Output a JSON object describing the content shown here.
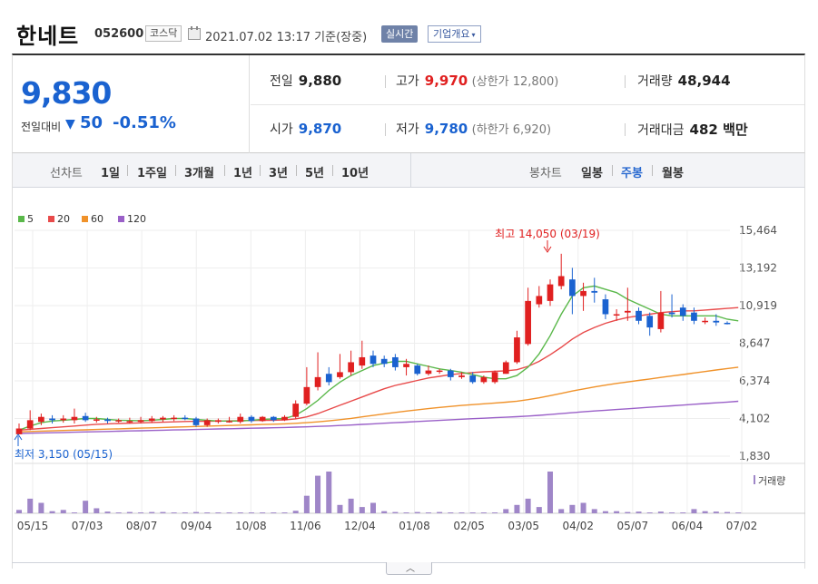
{
  "header": {
    "name": "한네트",
    "code": "052600",
    "market": "코스닥",
    "datetime": "2021.07.02 13:17  기준(장중)",
    "realtime_label": "실시간",
    "overview_label": "기업개요",
    "overview_caret": "▾"
  },
  "quote": {
    "price": "9,830",
    "diff_label": "전일대비",
    "diff_arrow": "▼",
    "diff_value": "50",
    "diff_pct": "-0.51%",
    "prev_close_label": "전일",
    "prev_close": "9,880",
    "high_label": "고가",
    "high": "9,970",
    "upper_limit": "(상한가 12,800)",
    "volume_label": "거래량",
    "volume": "48,944",
    "open_label": "시가",
    "open": "9,870",
    "low_label": "저가",
    "low": "9,780",
    "lower_limit": "(하한가 6,920)",
    "amount_label": "거래대금",
    "amount": "482 백만"
  },
  "period_bar": {
    "line_label": "선차트",
    "line_items": [
      "1일",
      "1주일",
      "3개월",
      "1년",
      "3년",
      "5년",
      "10년"
    ],
    "candle_label": "봉차트",
    "candle_items": [
      "일봉",
      "주봉",
      "월봉"
    ],
    "active": "주봉"
  },
  "colors": {
    "up": "#e02020",
    "down": "#1a62d0",
    "ma5": "#5ab84a",
    "ma20": "#e84a4a",
    "ma60": "#f0922a",
    "ma120": "#9a60c8",
    "volume": "#9f86c8"
  },
  "chart_data": {
    "type": "candlestick",
    "legend": [
      "5",
      "20",
      "60",
      "120"
    ],
    "y_ticks": [
      "15,464",
      "13,192",
      "10,919",
      "8,647",
      "6,374",
      "4,102",
      "1,830"
    ],
    "ylim": [
      1830,
      15464
    ],
    "x_ticks": [
      "05/15",
      "07/03",
      "08/07",
      "09/04",
      "10/08",
      "11/06",
      "12/04",
      "01/08",
      "02/05",
      "03/05",
      "04/02",
      "05/07",
      "06/04",
      "07/02"
    ],
    "high_annotation": "최고 14,050 (03/19)",
    "low_annotation": "최저 3,150 (05/15)",
    "volume_label": "거래량",
    "candles": [
      {
        "o": 3150,
        "c": 3500,
        "h": 3800,
        "l": 3150
      },
      {
        "o": 3500,
        "c": 4000,
        "h": 4600,
        "l": 3400
      },
      {
        "o": 3900,
        "c": 4200,
        "h": 4400,
        "l": 3700
      },
      {
        "o": 4100,
        "c": 4000,
        "h": 4300,
        "l": 3800
      },
      {
        "o": 4000,
        "c": 4100,
        "h": 4300,
        "l": 3850
      },
      {
        "o": 4000,
        "c": 4200,
        "h": 4700,
        "l": 3800
      },
      {
        "o": 4250,
        "c": 4000,
        "h": 4450,
        "l": 3900
      },
      {
        "o": 4000,
        "c": 4050,
        "h": 4200,
        "l": 3850
      },
      {
        "o": 4050,
        "c": 3950,
        "h": 4150,
        "l": 3800
      },
      {
        "o": 3950,
        "c": 4000,
        "h": 4100,
        "l": 3850
      },
      {
        "o": 3900,
        "c": 3950,
        "h": 4150,
        "l": 3800
      },
      {
        "o": 3900,
        "c": 4000,
        "h": 4200,
        "l": 3800
      },
      {
        "o": 3950,
        "c": 4100,
        "h": 4250,
        "l": 3850
      },
      {
        "o": 4050,
        "c": 4150,
        "h": 4250,
        "l": 3900
      },
      {
        "o": 4100,
        "c": 4150,
        "h": 4300,
        "l": 3950
      },
      {
        "o": 4150,
        "c": 4100,
        "h": 4300,
        "l": 4000
      },
      {
        "o": 4100,
        "c": 3700,
        "h": 4200,
        "l": 3600
      },
      {
        "o": 3700,
        "c": 4000,
        "h": 4100,
        "l": 3600
      },
      {
        "o": 3900,
        "c": 4000,
        "h": 4100,
        "l": 3800
      },
      {
        "o": 3900,
        "c": 3950,
        "h": 4200,
        "l": 3850
      },
      {
        "o": 3900,
        "c": 4200,
        "h": 4400,
        "l": 3800
      },
      {
        "o": 4200,
        "c": 3950,
        "h": 4300,
        "l": 3850
      },
      {
        "o": 3950,
        "c": 4200,
        "h": 4250,
        "l": 3900
      },
      {
        "o": 4200,
        "c": 4000,
        "h": 4250,
        "l": 3900
      },
      {
        "o": 4000,
        "c": 4200,
        "h": 4300,
        "l": 3950
      },
      {
        "o": 4200,
        "c": 5000,
        "h": 5200,
        "l": 4100
      },
      {
        "o": 5000,
        "c": 6000,
        "h": 7200,
        "l": 4900
      },
      {
        "o": 6000,
        "c": 6600,
        "h": 8100,
        "l": 5800
      },
      {
        "o": 6800,
        "c": 6300,
        "h": 7200,
        "l": 6100
      },
      {
        "o": 6600,
        "c": 6900,
        "h": 8000,
        "l": 6500
      },
      {
        "o": 6900,
        "c": 7500,
        "h": 8200,
        "l": 6700
      },
      {
        "o": 7300,
        "c": 7800,
        "h": 8800,
        "l": 7100
      },
      {
        "o": 7900,
        "c": 7400,
        "h": 8200,
        "l": 7200
      },
      {
        "o": 7700,
        "c": 7400,
        "h": 7900,
        "l": 7200
      },
      {
        "o": 7800,
        "c": 7200,
        "h": 8000,
        "l": 7000
      },
      {
        "o": 7200,
        "c": 7400,
        "h": 7700,
        "l": 6700
      },
      {
        "o": 7300,
        "c": 6800,
        "h": 7400,
        "l": 6700
      },
      {
        "o": 6800,
        "c": 7000,
        "h": 7300,
        "l": 6700
      },
      {
        "o": 7000,
        "c": 7000,
        "h": 7100,
        "l": 6800
      },
      {
        "o": 7000,
        "c": 6600,
        "h": 7100,
        "l": 6400
      },
      {
        "o": 6600,
        "c": 6700,
        "h": 6900,
        "l": 6500
      },
      {
        "o": 6700,
        "c": 6300,
        "h": 6900,
        "l": 6200
      },
      {
        "o": 6300,
        "c": 6600,
        "h": 6700,
        "l": 6200
      },
      {
        "o": 6300,
        "c": 6900,
        "h": 7000,
        "l": 6200
      },
      {
        "o": 6800,
        "c": 7500,
        "h": 7600,
        "l": 6800
      },
      {
        "o": 7500,
        "c": 9000,
        "h": 9400,
        "l": 7400
      },
      {
        "o": 8600,
        "c": 11200,
        "h": 12000,
        "l": 8500
      },
      {
        "o": 11000,
        "c": 11500,
        "h": 12100,
        "l": 10800
      },
      {
        "o": 11200,
        "c": 12200,
        "h": 12500,
        "l": 10900
      },
      {
        "o": 12100,
        "c": 12700,
        "h": 14050,
        "l": 11900
      },
      {
        "o": 12500,
        "c": 11500,
        "h": 13200,
        "l": 10400
      },
      {
        "o": 11500,
        "c": 11800,
        "h": 12300,
        "l": 10600
      },
      {
        "o": 11800,
        "c": 11700,
        "h": 12600,
        "l": 11100
      },
      {
        "o": 11300,
        "c": 10400,
        "h": 11600,
        "l": 10100
      },
      {
        "o": 10400,
        "c": 10400,
        "h": 10700,
        "l": 10000
      },
      {
        "o": 10500,
        "c": 10600,
        "h": 12000,
        "l": 10000
      },
      {
        "o": 10600,
        "c": 10000,
        "h": 10800,
        "l": 9800
      },
      {
        "o": 10300,
        "c": 9600,
        "h": 10500,
        "l": 9100
      },
      {
        "o": 9500,
        "c": 10500,
        "h": 11800,
        "l": 9300
      },
      {
        "o": 10500,
        "c": 10400,
        "h": 11600,
        "l": 10200
      },
      {
        "o": 10800,
        "c": 10300,
        "h": 11000,
        "l": 10000
      },
      {
        "o": 10500,
        "c": 10000,
        "h": 10800,
        "l": 9800
      },
      {
        "o": 10000,
        "c": 10000,
        "h": 10200,
        "l": 9800
      },
      {
        "o": 10000,
        "c": 9900,
        "h": 10400,
        "l": 9700
      },
      {
        "o": 9880,
        "c": 9830,
        "h": 9970,
        "l": 9780
      }
    ],
    "ma": {
      "ma5": [
        3400,
        3650,
        3850,
        3950,
        4000,
        4050,
        4100,
        4100,
        4050,
        4000,
        3980,
        3970,
        4000,
        4050,
        4100,
        4100,
        4050,
        4000,
        3950,
        3950,
        3950,
        4000,
        4050,
        4080,
        4100,
        4300,
        4700,
        5200,
        5800,
        6300,
        6700,
        7000,
        7300,
        7450,
        7550,
        7550,
        7400,
        7250,
        7100,
        7000,
        6900,
        6750,
        6600,
        6500,
        6500,
        6700,
        7200,
        8000,
        9100,
        10400,
        11500,
        12000,
        12100,
        11900,
        11700,
        11300,
        11000,
        10700,
        10400,
        10300,
        10300,
        10300,
        10300,
        10300,
        10100,
        10000
      ],
      "ma20": [
        3400,
        3450,
        3500,
        3550,
        3600,
        3650,
        3700,
        3750,
        3780,
        3800,
        3820,
        3840,
        3860,
        3880,
        3900,
        3920,
        3930,
        3940,
        3950,
        3960,
        3970,
        3980,
        3990,
        4000,
        4020,
        4080,
        4200,
        4400,
        4650,
        4900,
        5150,
        5400,
        5650,
        5900,
        6100,
        6250,
        6400,
        6550,
        6650,
        6750,
        6820,
        6880,
        6920,
        6950,
        6980,
        7050,
        7250,
        7550,
        7950,
        8400,
        8900,
        9300,
        9600,
        9850,
        10050,
        10200,
        10300,
        10400,
        10500,
        10550,
        10600,
        10600,
        10650,
        10700,
        10750,
        10800
      ],
      "ma60": [
        3300,
        3320,
        3340,
        3360,
        3380,
        3400,
        3420,
        3440,
        3460,
        3480,
        3500,
        3520,
        3540,
        3560,
        3580,
        3600,
        3620,
        3640,
        3660,
        3680,
        3700,
        3720,
        3740,
        3760,
        3780,
        3810,
        3850,
        3900,
        3960,
        4030,
        4110,
        4200,
        4290,
        4380,
        4470,
        4550,
        4630,
        4700,
        4770,
        4830,
        4890,
        4940,
        4990,
        5040,
        5090,
        5150,
        5240,
        5350,
        5480,
        5620,
        5760,
        5890,
        6010,
        6120,
        6220,
        6310,
        6400,
        6490,
        6580,
        6670,
        6760,
        6850,
        6940,
        7030,
        7120,
        7200
      ],
      "ma120": [
        3200,
        3215,
        3230,
        3245,
        3260,
        3275,
        3290,
        3305,
        3320,
        3335,
        3350,
        3365,
        3380,
        3395,
        3410,
        3425,
        3440,
        3455,
        3470,
        3485,
        3500,
        3515,
        3530,
        3545,
        3560,
        3580,
        3600,
        3625,
        3650,
        3680,
        3710,
        3745,
        3780,
        3815,
        3850,
        3885,
        3920,
        3955,
        3990,
        4025,
        4060,
        4090,
        4120,
        4150,
        4180,
        4210,
        4250,
        4295,
        4345,
        4400,
        4455,
        4505,
        4555,
        4600,
        4645,
        4690,
        4735,
        4780,
        4825,
        4870,
        4915,
        4960,
        5005,
        5050,
        5095,
        5140
      ]
    },
    "volume": [
      0.08,
      0.35,
      0.25,
      0.05,
      0.08,
      0.02,
      0.3,
      0.12,
      0.04,
      0.02,
      0.03,
      0.02,
      0.03,
      0.03,
      0.02,
      0.02,
      0.03,
      0.02,
      0.02,
      0.02,
      0.02,
      0.02,
      0.02,
      0.02,
      0.02,
      0.06,
      0.42,
      0.9,
      1.0,
      0.2,
      0.35,
      0.15,
      0.25,
      0.05,
      0.03,
      0.02,
      0.03,
      0.02,
      0.03,
      0.02,
      0.02,
      0.02,
      0.02,
      0.02,
      0.1,
      0.2,
      0.35,
      0.15,
      1.0,
      0.1,
      0.2,
      0.25,
      0.1,
      0.05,
      0.05,
      0.03,
      0.04,
      0.02,
      0.04,
      0.02,
      0.02,
      0.1,
      0.05,
      0.04,
      0.03,
      0.02
    ]
  }
}
